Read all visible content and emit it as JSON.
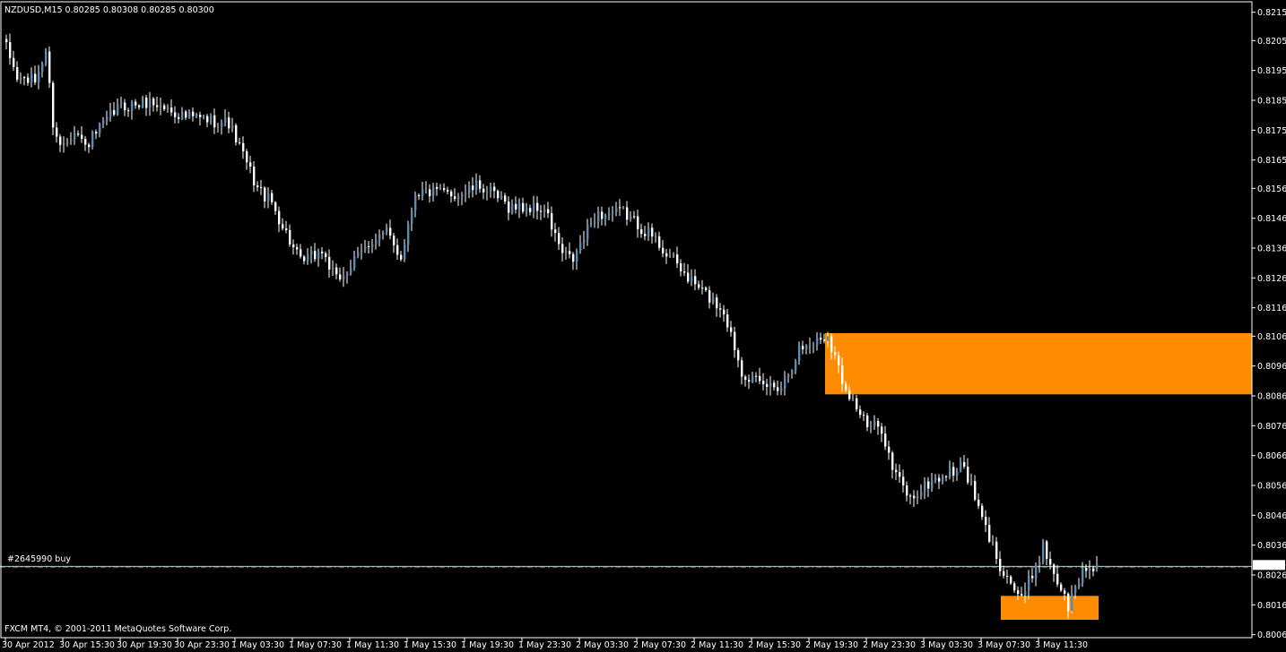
{
  "header": {
    "symbol_line": "NZDUSD,M15  0.80285 0.80308 0.80285 0.80300"
  },
  "footer": {
    "copyright": "FXCM MT4, © 2001-2011 MetaQuotes Software Corp."
  },
  "order_line": {
    "label": "#2645990 buy",
    "price": 0.8029,
    "color": "#2e8b57"
  },
  "colors": {
    "background": "#000000",
    "bull_candle": "#5b8db3",
    "bear_candle": "#ffffff",
    "zone": "#ff8c00",
    "axis": "#ffffff",
    "bid_line": "#cccccc"
  },
  "chart_data": {
    "type": "candlestick",
    "symbol": "NZDUSD",
    "timeframe": "M15",
    "current": {
      "open": 0.80285,
      "high": 0.80308,
      "low": 0.80285,
      "close": 0.803
    },
    "current_price_label": "0.80300",
    "ylim": [
      0.80055,
      0.82185
    ],
    "y_ticks": [
      "0.82150",
      "0.82055",
      "0.81955",
      "0.81855",
      "0.81755",
      "0.81655",
      "0.81560",
      "0.81460",
      "0.81360",
      "0.81260",
      "0.81160",
      "0.81065",
      "0.80965",
      "0.80865",
      "0.80765",
      "0.80665",
      "0.80565",
      "0.80465",
      "0.80365",
      "0.80265",
      "0.80165",
      "0.80065"
    ],
    "x_ticks": [
      "30 Apr 2012",
      "30 Apr 15:30",
      "30 Apr 19:30",
      "30 Apr 23:30",
      "1 May 03:30",
      "1 May 07:30",
      "1 May 11:30",
      "1 May 15:30",
      "1 May 19:30",
      "1 May 23:30",
      "2 May 03:30",
      "2 May 07:30",
      "2 May 11:30",
      "2 May 15:30",
      "2 May 19:30",
      "2 May 23:30",
      "3 May 03:30",
      "3 May 07:30",
      "3 May 11:30"
    ],
    "candles_per_tick": 16,
    "first_tick_candle": 0,
    "price_path": [
      [
        0,
        0.8203
      ],
      [
        3,
        0.8193
      ],
      [
        8,
        0.8192
      ],
      [
        11,
        0.8202
      ],
      [
        13,
        0.8178
      ],
      [
        15,
        0.817
      ],
      [
        19,
        0.8176
      ],
      [
        22,
        0.817
      ],
      [
        31,
        0.8183
      ],
      [
        40,
        0.8185
      ],
      [
        50,
        0.818
      ],
      [
        62,
        0.8178
      ],
      [
        70,
        0.8156
      ],
      [
        74,
        0.8151
      ],
      [
        82,
        0.8131
      ],
      [
        88,
        0.8135
      ],
      [
        92,
        0.8125
      ],
      [
        96,
        0.813
      ],
      [
        102,
        0.8139
      ],
      [
        106,
        0.8141
      ],
      [
        110,
        0.8133
      ],
      [
        114,
        0.8155
      ],
      [
        126,
        0.8154
      ],
      [
        132,
        0.8157
      ],
      [
        140,
        0.815
      ],
      [
        150,
        0.8149
      ],
      [
        155,
        0.8134
      ],
      [
        158,
        0.8132
      ],
      [
        164,
        0.8147
      ],
      [
        172,
        0.8148
      ],
      [
        180,
        0.814
      ],
      [
        190,
        0.8126
      ],
      [
        200,
        0.8115
      ],
      [
        205,
        0.8095
      ],
      [
        210,
        0.809
      ],
      [
        216,
        0.809
      ],
      [
        221,
        0.8102
      ],
      [
        229,
        0.8107
      ],
      [
        233,
        0.8092
      ],
      [
        240,
        0.8076
      ],
      [
        244,
        0.8076
      ],
      [
        247,
        0.8062
      ],
      [
        252,
        0.8052
      ],
      [
        258,
        0.8058
      ],
      [
        267,
        0.8063
      ],
      [
        272,
        0.8045
      ],
      [
        277,
        0.803
      ],
      [
        283,
        0.8018
      ],
      [
        289,
        0.8036
      ],
      [
        296,
        0.8016
      ],
      [
        300,
        0.8028
      ],
      [
        304,
        0.803
      ]
    ],
    "zones": [
      {
        "from_candle": 229,
        "to_end": true,
        "price_top": 0.81075,
        "price_bottom": 0.8087
      },
      {
        "from_candle": 278,
        "to_candle": 304,
        "price_top": 0.80195,
        "price_bottom": 0.80115
      }
    ]
  }
}
